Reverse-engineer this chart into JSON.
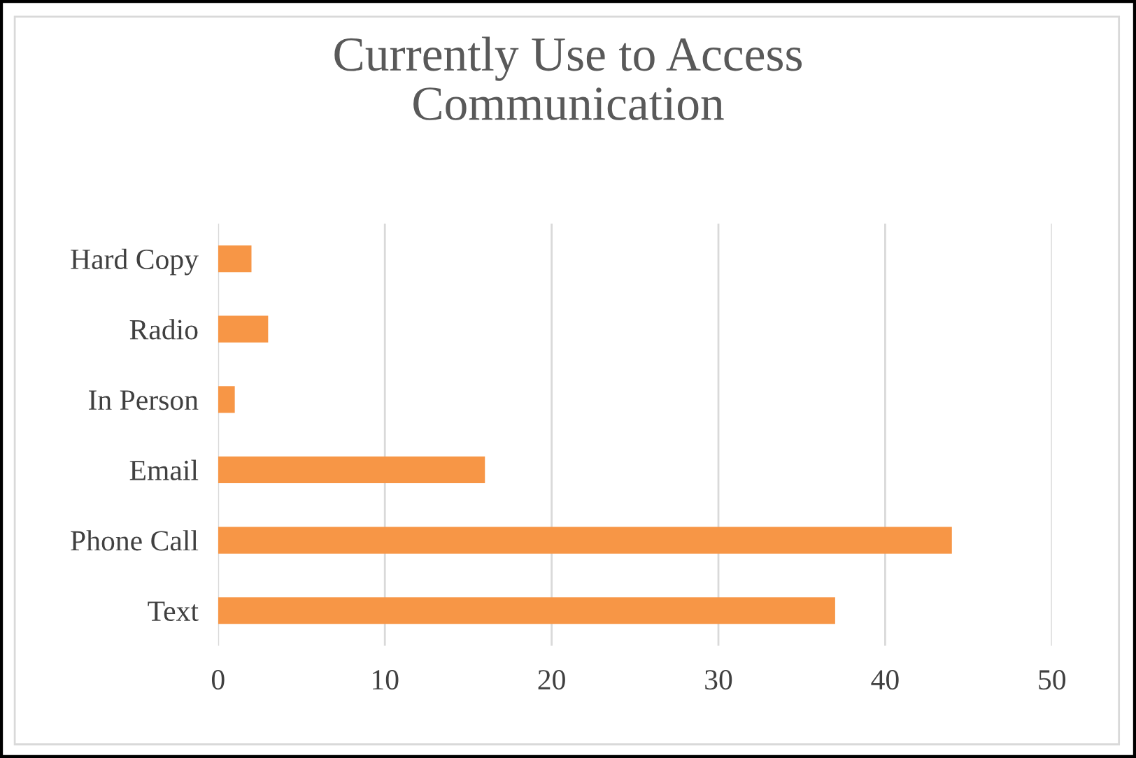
{
  "chart_data": {
    "type": "bar",
    "orientation": "horizontal",
    "title": "Currently Use to Access\nCommunication",
    "categories": [
      "Hard Copy",
      "Radio",
      "In Person",
      "Email",
      "Phone Call",
      "Text"
    ],
    "values": [
      2,
      3,
      1,
      16,
      44,
      37
    ],
    "color": "#f79646",
    "xlim": [
      0,
      50
    ],
    "xticks": [
      0,
      10,
      20,
      30,
      40,
      50
    ],
    "grid": "x",
    "legend": false
  }
}
